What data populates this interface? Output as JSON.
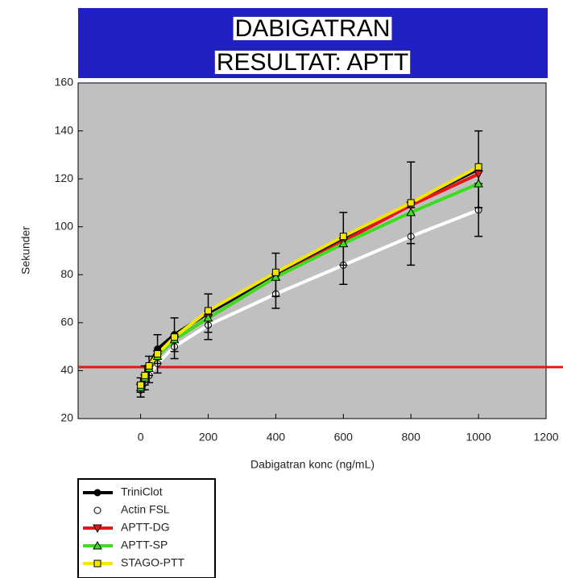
{
  "chart_data": {
    "type": "line",
    "title_lines": [
      "DABIGATRAN",
      "RESULTAT: APTT"
    ],
    "x_label": "Dabigatran konc (ng/mL)",
    "y_label": "Sekunder",
    "x": [
      0,
      12.5,
      25,
      50,
      100,
      200,
      400,
      600,
      800,
      1000
    ],
    "xlim": [
      -185,
      1200
    ],
    "xticks": [
      0,
      200,
      400,
      600,
      800,
      1000,
      1200
    ],
    "ylim": [
      20,
      160
    ],
    "yticks": [
      20,
      40,
      60,
      80,
      100,
      120,
      140,
      160
    ],
    "reference_line": 41.5,
    "reference_color": "#e8141a",
    "series": [
      {
        "name": "TriniClot",
        "color": "#000000",
        "marker": "circle-filled",
        "values": [
          34,
          38,
          42,
          49,
          55,
          64,
          80,
          95,
          110,
          124
        ],
        "errors": [
          3,
          4,
          4,
          6,
          7,
          8,
          9,
          11,
          17,
          16
        ]
      },
      {
        "name": "Actin FSL",
        "color": "#ffffff",
        "marker": "circle-open",
        "values": [
          32,
          35,
          38,
          43,
          50,
          59,
          72,
          84,
          96,
          107
        ],
        "errors": [
          3,
          3,
          3,
          4,
          5,
          6,
          6,
          8,
          12,
          11
        ]
      },
      {
        "name": "APTT-DG",
        "color": "#e8141a",
        "marker": "triangle-down",
        "values": [
          33,
          37,
          41,
          47,
          53,
          62,
          79,
          94,
          109,
          122
        ]
      },
      {
        "name": "APTT-SP",
        "color": "#3ddc1e",
        "marker": "triangle-up",
        "values": [
          33,
          37,
          41,
          46,
          53,
          62,
          79,
          93,
          106,
          118
        ]
      },
      {
        "name": "STAGO-PTT",
        "color": "#f5e600",
        "marker": "square",
        "values": [
          34,
          38,
          42,
          47,
          54,
          65,
          81,
          96,
          110,
          125
        ]
      }
    ]
  }
}
